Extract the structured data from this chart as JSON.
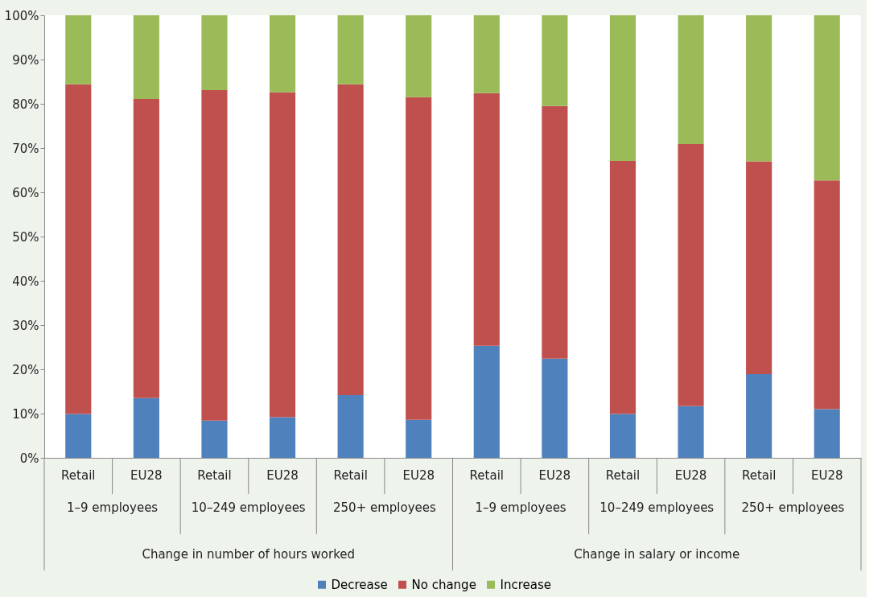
{
  "chart_data": {
    "type": "bar",
    "stacked": true,
    "categories": [
      "Retail",
      "EU28",
      "Retail",
      "EU28",
      "Retail",
      "EU28",
      "Retail",
      "EU28",
      "Retail",
      "EU28",
      "Retail",
      "EU28"
    ],
    "series": [
      {
        "name": "Decrease",
        "color": "#4f81bd",
        "values": [
          9.9,
          13.5,
          8.4,
          9.2,
          14.2,
          8.6,
          25.3,
          22.4,
          9.9,
          11.7,
          18.9,
          11.0
        ]
      },
      {
        "name": "No change",
        "color": "#c0504d",
        "values": [
          74.5,
          67.6,
          74.7,
          73.4,
          70.2,
          72.9,
          57.1,
          57.1,
          57.2,
          59.2,
          48.1,
          51.7
        ]
      },
      {
        "name": "Increase",
        "color": "#9bbb59",
        "values": [
          15.6,
          18.9,
          16.9,
          17.4,
          15.6,
          18.5,
          17.6,
          20.5,
          32.9,
          29.1,
          33.0,
          37.3
        ]
      }
    ],
    "annotations": [
      "1–9 employees",
      "10–249 employees",
      "250+ employees",
      "1–9 employees",
      "10–249 employees",
      "250+ employees",
      "Change in number of hours worked",
      "Change in salary or income"
    ],
    "ylim": [
      0,
      100
    ],
    "yticks": [
      {
        "value": 0,
        "label": "0%"
      },
      {
        "value": 10,
        "label": "10%"
      },
      {
        "value": 20,
        "label": "20%"
      },
      {
        "value": 30,
        "label": "30%"
      },
      {
        "value": 40,
        "label": "40%"
      },
      {
        "value": 50,
        "label": "50%"
      },
      {
        "value": 60,
        "label": "60%"
      },
      {
        "value": 70,
        "label": "70%"
      },
      {
        "value": 80,
        "label": "80%"
      },
      {
        "value": 90,
        "label": "90%"
      },
      {
        "value": 100,
        "label": "100%"
      }
    ],
    "grid": false,
    "legend": "bottom"
  }
}
